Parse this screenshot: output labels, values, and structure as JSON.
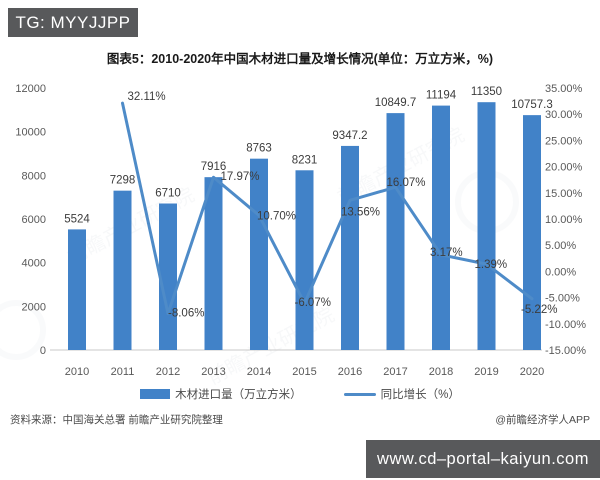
{
  "badges": {
    "top_left": "TG: MYYJJPP",
    "bottom_right": "www.cd–portal–kaiyun.com"
  },
  "title": "图表5：2010-2020年中国木材进口量及增长情况(单位：万立方米，%)",
  "legend": {
    "bars": "木材进口量（万立方米）",
    "line": "同比增长（%）"
  },
  "footer": {
    "source": "资料来源：中国海关总署 前瞻产业研究院整理",
    "credit": "@前瞻经济学人APP"
  },
  "watermark_text": "前瞻产业研究院",
  "colors": {
    "bar": "#4182c8",
    "line": "#4e8bc8",
    "badge_bg": "#58595b",
    "axis_text": "#595959",
    "label_text": "#3c3c3c",
    "baseline": "#c8c8c8"
  },
  "chart_data": {
    "type": "bar+line",
    "title": "图表5：2010-2020年中国木材进口量及增长情况(单位：万立方米，%)",
    "categories": [
      "2010",
      "2011",
      "2012",
      "2013",
      "2014",
      "2015",
      "2016",
      "2017",
      "2018",
      "2019",
      "2020"
    ],
    "series": [
      {
        "name": "木材进口量（万立方米）",
        "type": "bar",
        "axis": "left",
        "values": [
          5524,
          7298,
          6710,
          7916,
          8763,
          8231,
          9347.2,
          10849.7,
          11194,
          11350,
          10757.3
        ]
      },
      {
        "name": "同比增长（%）",
        "type": "line",
        "axis": "right",
        "values": [
          null,
          32.11,
          -8.06,
          17.97,
          10.7,
          -6.07,
          13.56,
          16.07,
          3.17,
          1.39,
          -5.22
        ]
      }
    ],
    "bar_labels": [
      "5524",
      "7298",
      "6710",
      "7916",
      "8763",
      "8231",
      "9347.2",
      "10849.7",
      "11194",
      "11350",
      "10757.3"
    ],
    "line_labels": [
      null,
      "32.11%",
      "-8.06%",
      "17.97%",
      "10.70%",
      "-6.07%",
      "13.56%",
      "16.07%",
      "3.17%",
      "1.39%",
      "-5.22%"
    ],
    "left_axis": {
      "min": 0,
      "max": 12000,
      "step": 2000,
      "ticks": [
        0,
        2000,
        4000,
        6000,
        8000,
        10000,
        12000
      ]
    },
    "right_axis": {
      "min": -15,
      "max": 35,
      "step": 5,
      "ticks": [
        "35.00%",
        "30.00%",
        "25.00%",
        "20.00%",
        "15.00%",
        "10.00%",
        "5.00%",
        "0.00%",
        "-5.00%",
        "-10.00%",
        "-15.00%"
      ]
    },
    "grid": false,
    "legend_position": "bottom"
  }
}
